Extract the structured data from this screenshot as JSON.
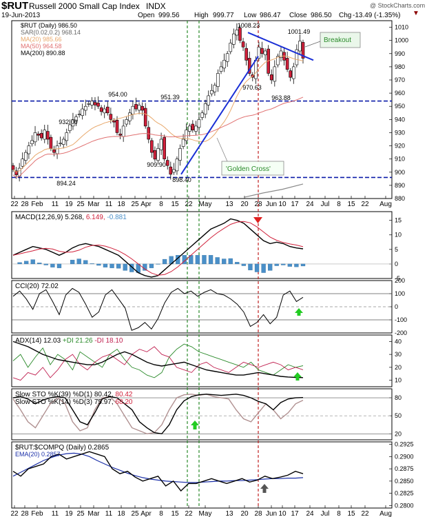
{
  "header": {
    "symbol": "$RUT",
    "name": "Russell 2000 Small Cap Index",
    "exchange": "INDX",
    "date": "19-Jun-2013",
    "open_label": "Open",
    "open": "999.56",
    "high_label": "High",
    "high": "999.77",
    "low_label": "Low",
    "low": "986.47",
    "close_label": "Close",
    "close": "986.50",
    "chg_label": "Chg",
    "chg": "-13.49 (-1.35%)",
    "watermark": "@ StockCharts.com"
  },
  "colors": {
    "up": "#ffffff",
    "down": "#d0203a",
    "wick": "#000000",
    "ma20": "#e8a86b",
    "ma50": "#e07070",
    "ma200": "#888888",
    "trend": "#1a2fd6",
    "support": "#0a1aa8",
    "green_vline": "#2a8a2a",
    "red_vline": "#c02020",
    "macd_hist": "#4a8fc8",
    "cci_fill": "#6b8e5a",
    "cci_fill_neg": "#8e6b6b"
  },
  "price_panel": {
    "legend": [
      {
        "text": "$RUT (Daily) 986.50",
        "color": "#000000"
      },
      {
        "text": "SAR(0.02,0.2) 968.14",
        "color": "#666666"
      },
      {
        "text": "MA(20) 985.66",
        "color": "#e8a86b"
      },
      {
        "text": "MA(50) 964.58",
        "color": "#e07070"
      },
      {
        "text": "MA(200) 890.88",
        "color": "#000000"
      }
    ],
    "ylim": [
      880,
      1015
    ],
    "yticks": [
      880,
      890,
      900,
      910,
      920,
      930,
      940,
      950,
      960,
      970,
      980,
      990,
      1000,
      1010
    ],
    "support_levels": [
      954,
      896
    ],
    "annotations": {
      "breakout": "Breakout",
      "golden_cross": "'Golden Cross'",
      "labels": [
        "932.00",
        "954.00",
        "951.39",
        "894.24",
        "909.90",
        "898.40",
        "1008.23",
        "1001.49",
        "970.63",
        "963.88"
      ]
    }
  },
  "chart_data": [
    {
      "type": "candlestick",
      "title": "$RUT (Daily) 986.50",
      "x_labels": [
        "22",
        "28",
        "Feb",
        "11",
        "19",
        "25",
        "Mar",
        "11",
        "18",
        "25",
        "Apr",
        "8",
        "15",
        "22",
        "May",
        "13",
        "20",
        "28",
        "Jun",
        "10",
        "17",
        "24",
        "Jul",
        "8",
        "15",
        "22",
        "Aug"
      ],
      "ylim": [
        880,
        1015
      ],
      "close": [
        902,
        898,
        903,
        910,
        915,
        920,
        924,
        930,
        928,
        926,
        932,
        925,
        918,
        915,
        920,
        922,
        925,
        930,
        936,
        940,
        942,
        944,
        948,
        950,
        952,
        954,
        951,
        950,
        946,
        948,
        945,
        940,
        938,
        930,
        928,
        935,
        940,
        945,
        950,
        948,
        951,
        947,
        935,
        925,
        915,
        909.9,
        918,
        925,
        910,
        905,
        898.4,
        902,
        910,
        918,
        925,
        932,
        935,
        932,
        935,
        940,
        945,
        952,
        958,
        962,
        966,
        975,
        980,
        985,
        990,
        998,
        1005,
        1008,
        1000,
        995,
        985,
        975,
        972,
        985,
        995,
        990,
        992,
        975,
        970,
        980,
        988,
        992,
        985,
        978,
        972,
        980,
        993,
        999.56,
        986.5
      ],
      "annotated_points": [
        {
          "label": "932.00",
          "value": 932.0
        },
        {
          "label": "954.00",
          "value": 954.0
        },
        {
          "label": "951.39",
          "value": 951.39
        },
        {
          "label": "894.24",
          "value": 894.24
        },
        {
          "label": "909.90",
          "value": 909.9
        },
        {
          "label": "898.40",
          "value": 898.4
        },
        {
          "label": "1008.23",
          "value": 1008.23
        },
        {
          "label": "1001.49",
          "value": 1001.49
        },
        {
          "label": "970.63",
          "value": 970.63
        },
        {
          "label": "963.88",
          "value": 963.88
        }
      ]
    },
    {
      "type": "line",
      "title": "MACD(12,26,9) 5.268, 6.149, -0.881",
      "ylim": [
        -5,
        18
      ],
      "yticks": [
        15,
        10,
        5,
        0,
        -5
      ],
      "series": [
        {
          "name": "MACD(12,26,9)",
          "last": 5.268
        },
        {
          "name": "signal",
          "last": 6.149
        },
        {
          "name": "histogram",
          "last": -0.881
        }
      ]
    },
    {
      "type": "line",
      "title": "CCI(20) 72.02",
      "ylim": [
        -200,
        200
      ],
      "yticks": [
        200,
        100,
        0,
        -100,
        -200
      ],
      "series": [
        {
          "name": "CCI(20)",
          "last": 72.02
        }
      ]
    },
    {
      "type": "line",
      "title": "ADX(14) 12.03 +DI 21.26 -DI 18.10",
      "ylim": [
        5,
        45
      ],
      "yticks": [
        40,
        30,
        20,
        10
      ],
      "series": [
        {
          "name": "ADX(14)",
          "last": 12.03
        },
        {
          "name": "+DI",
          "last": 21.26
        },
        {
          "name": "-DI",
          "last": 18.1
        }
      ]
    },
    {
      "type": "line",
      "title": "Slow STO %K(39) %D(1) 80.42, 80.42 / Slow STO %K(14) %D(3) 75.97, 68.20",
      "ylim": [
        10,
        95
      ],
      "yticks": [
        80,
        50,
        20
      ],
      "series": [
        {
          "name": "Slow STO %K(39) %D(1)",
          "values_last": [
            80.42,
            80.42
          ]
        },
        {
          "name": "Slow STO %K(14) %D(3)",
          "values_last": [
            75.97,
            68.2
          ]
        }
      ]
    },
    {
      "type": "line",
      "title": "$RUT:$COMPQ (Daily) 0.2865",
      "ylim": [
        0.2795,
        0.293
      ],
      "yticks": [
        0.2925,
        0.29,
        0.2875,
        0.285,
        0.2825,
        0.28
      ],
      "series": [
        {
          "name": "$RUT:$COMPQ (Daily)",
          "last": 0.2865
        },
        {
          "name": "EMA(20)",
          "last": 0.2857
        }
      ]
    }
  ],
  "panels": {
    "macd": {
      "legend_parts": [
        {
          "text": "MACD(12,26,9) 5.268,",
          "color": "#000000"
        },
        {
          "text": " 6.149,",
          "color": "#d0203a"
        },
        {
          "text": " -0.881",
          "color": "#4a8fc8"
        }
      ],
      "yticks": [
        "15",
        "10",
        "5",
        "0",
        "-5"
      ]
    },
    "cci": {
      "legend": "CCI(20) 72.02",
      "yticks": [
        "200",
        "100",
        "0",
        "-100",
        "-200"
      ]
    },
    "adx": {
      "legend_parts": [
        {
          "text": "ADX(14) 12.03",
          "color": "#000000"
        },
        {
          "text": " +DI 21.26",
          "color": "#2a8a2a"
        },
        {
          "text": " -DI 18.10",
          "color": "#c02050"
        }
      ],
      "yticks": [
        "40",
        "30",
        "20",
        "10"
      ]
    },
    "sto": {
      "legend1_parts": [
        {
          "text": "Slow STO %K(39) %D(1) 80.42,",
          "color": "#000000"
        },
        {
          "text": " 80.42",
          "color": "#d0203a"
        }
      ],
      "legend2_parts": [
        {
          "text": "Slow STO %K(14) %D(3) 75.97,",
          "color": "#000000"
        },
        {
          "text": " 68.20",
          "color": "#d0203a"
        }
      ],
      "yticks": [
        "80",
        "50",
        "20"
      ]
    },
    "rs": {
      "legend": "$RUT:$COMPQ (Daily) 0.2865",
      "legend2": "EMA(20) 0.2857",
      "yticks": [
        "0.2925",
        "0.2900",
        "0.2875",
        "0.2850",
        "0.2825",
        "0.2800"
      ]
    }
  },
  "x_axis_labels": [
    "22",
    "28",
    "Feb",
    "11",
    "19",
    "25",
    "Mar",
    "11",
    "18",
    "25",
    "Apr",
    "8",
    "15",
    "22",
    "May",
    "13",
    "20",
    "28",
    "Jun",
    "10",
    "17",
    "24",
    "Jul",
    "8",
    "15",
    "22",
    "Aug"
  ]
}
